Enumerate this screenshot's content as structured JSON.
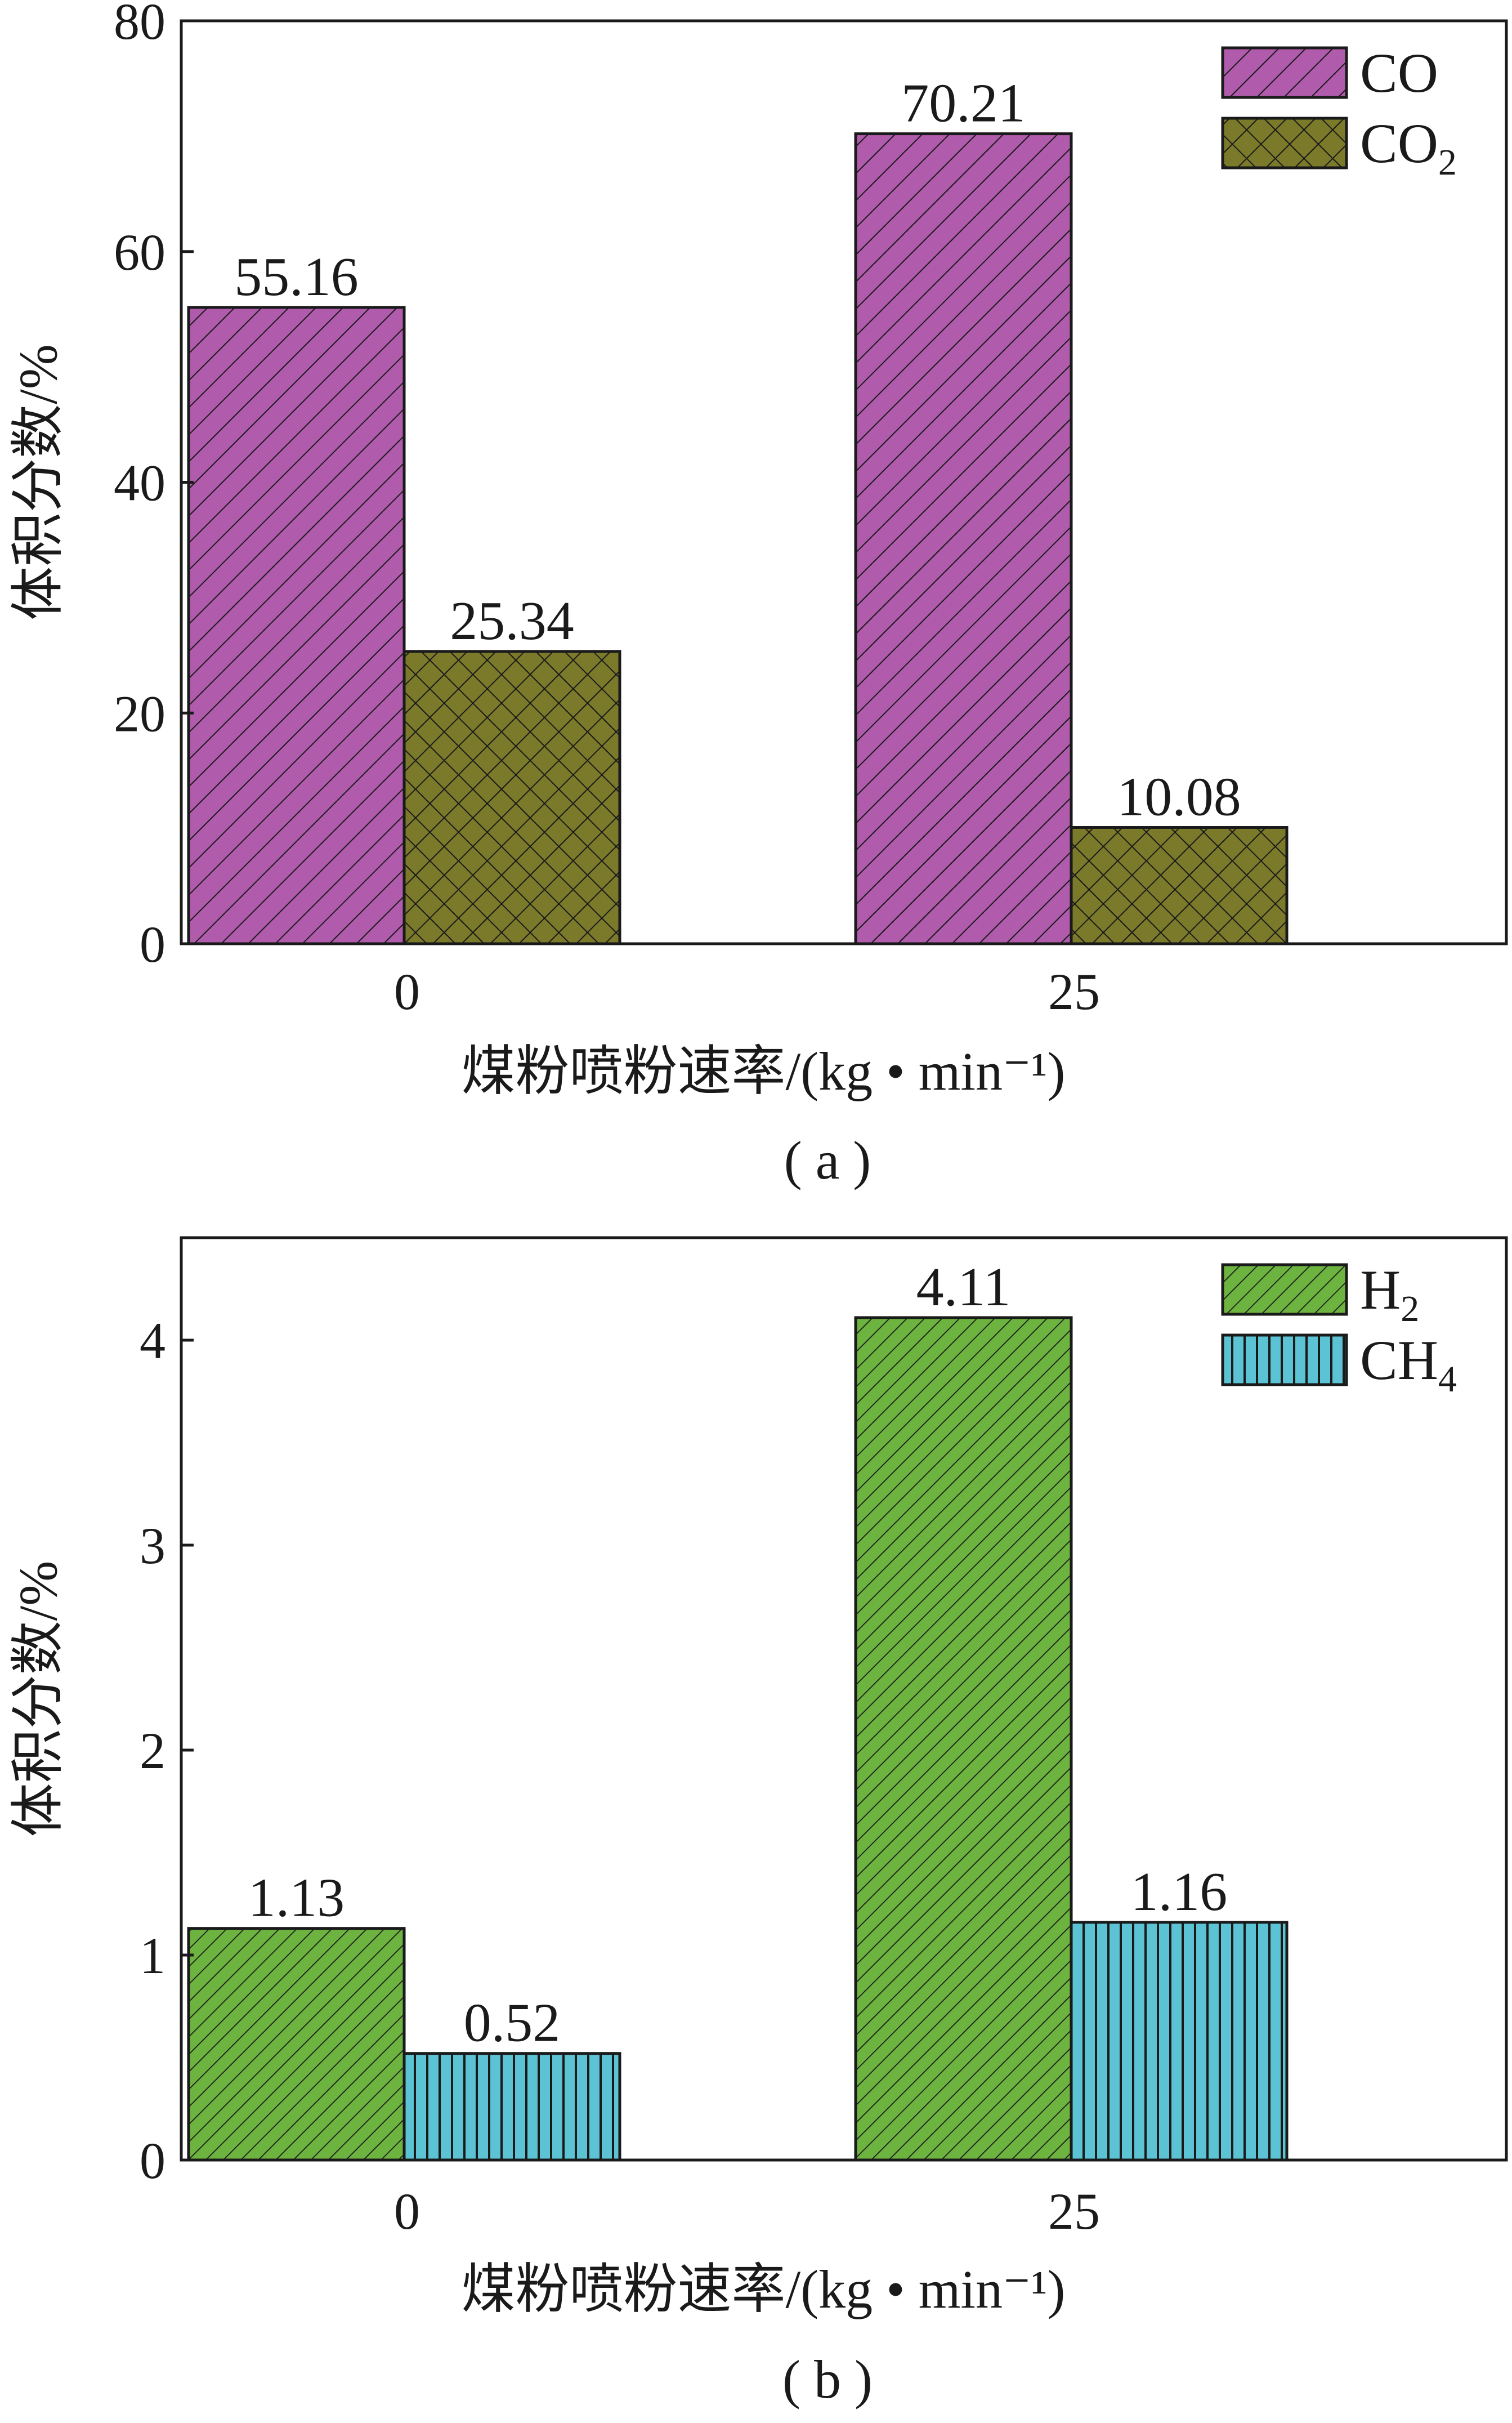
{
  "chart_data": [
    {
      "type": "bar",
      "caption": "( a )",
      "xlabel": "煤粉喷粉速率/(kg • min⁻¹)",
      "ylabel": "体积分数/%",
      "categories": [
        "0",
        "25"
      ],
      "ylim": [
        0,
        80
      ],
      "yticks": [
        0,
        20,
        40,
        60,
        80
      ],
      "legend_position": "top-right",
      "grid": false,
      "series": [
        {
          "name": "CO",
          "name_base": "CO",
          "name_sub": "",
          "color": "#b05bab",
          "pattern": "diag",
          "values": [
            55.16,
            70.21
          ],
          "labels": [
            "55.16",
            "70.21"
          ]
        },
        {
          "name": "CO₂",
          "name_base": "CO",
          "name_sub": "2",
          "color": "#7b7a2a",
          "pattern": "cross",
          "values": [
            25.34,
            10.08
          ],
          "labels": [
            "25.34",
            "10.08"
          ]
        }
      ]
    },
    {
      "type": "bar",
      "caption": "( b )",
      "xlabel": "煤粉喷粉速率/(kg • min⁻¹)",
      "ylabel": "体积分数/%",
      "categories": [
        "0",
        "25"
      ],
      "ylim": [
        0,
        4.5
      ],
      "yticks": [
        0,
        1,
        2,
        3,
        4
      ],
      "legend_position": "top-right",
      "grid": false,
      "series": [
        {
          "name": "H₂",
          "name_base": "H",
          "name_sub": "2",
          "color": "#6db33f",
          "pattern": "diag-dense",
          "values": [
            1.13,
            4.11
          ],
          "labels": [
            "1.13",
            "4.11"
          ]
        },
        {
          "name": "CH₄",
          "name_base": "CH",
          "name_sub": "4",
          "color": "#5bc3d3",
          "pattern": "vert",
          "values": [
            0.52,
            1.16
          ],
          "labels": [
            "0.52",
            "1.16"
          ]
        }
      ]
    }
  ]
}
